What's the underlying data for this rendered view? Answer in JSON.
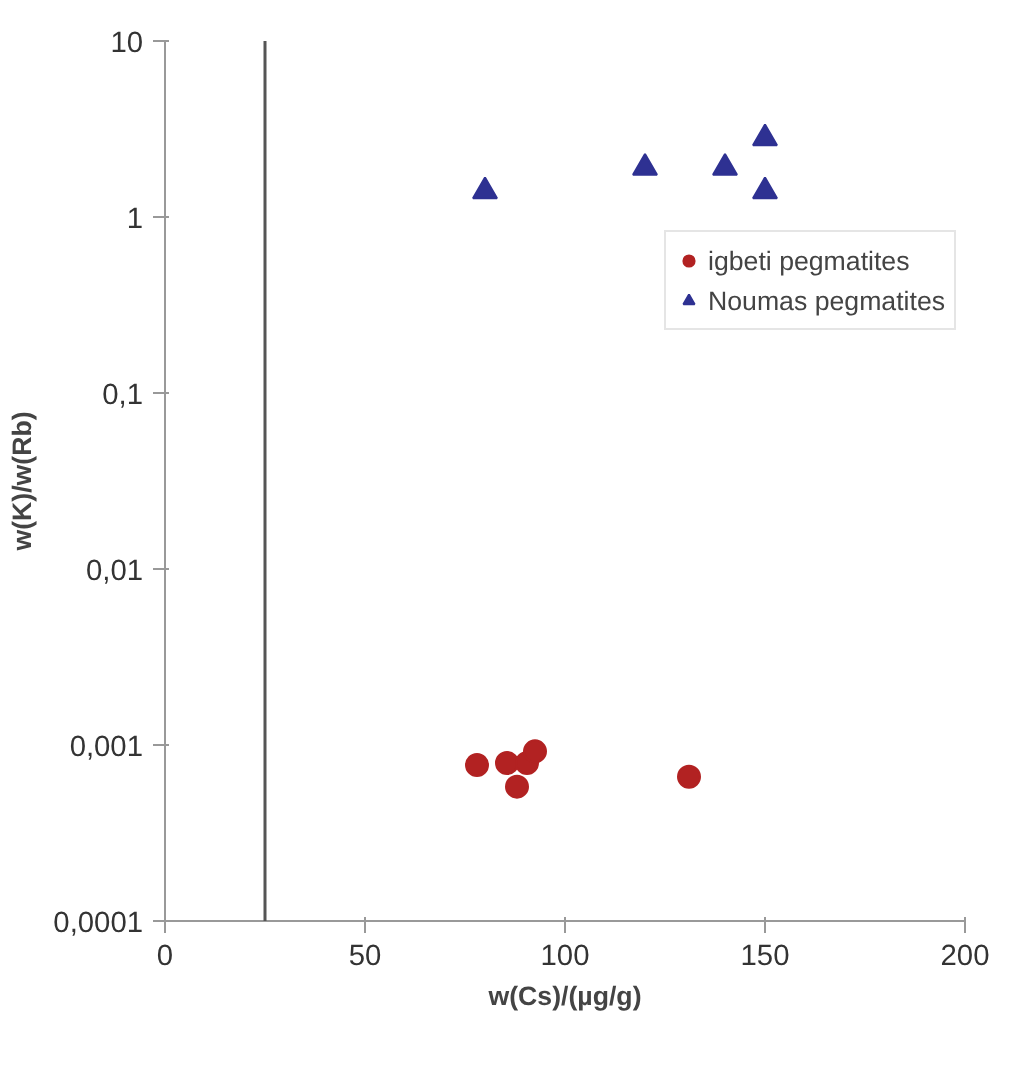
{
  "chart_data": {
    "type": "scatter",
    "xlabel": "w(Cs)/(µg/g)",
    "ylabel": "w(K)/w(Rb)",
    "log": "y",
    "xlim": [
      0,
      200
    ],
    "xticks": [
      0,
      50,
      100,
      150,
      200
    ],
    "ylim": [
      0.0001,
      10
    ],
    "yticks": [
      {
        "value": 0.0001,
        "label": "0,0001"
      },
      {
        "value": 0.001,
        "label": "0,001"
      },
      {
        "value": 0.01,
        "label": "0,01"
      },
      {
        "value": 0.1,
        "label": "0,1"
      },
      {
        "value": 1,
        "label": "1"
      },
      {
        "value": 10,
        "label": "10"
      }
    ],
    "grid": false,
    "legend": "top right",
    "ref_lines": [
      {
        "axis": "x",
        "value": 25,
        "color": "#555555"
      }
    ],
    "series": [
      {
        "name": "igbeti pegmatites",
        "color": "#b22222",
        "marker": "circle",
        "x": [
          78,
          85.5,
          90.5,
          92.5,
          88,
          131
        ],
        "values": [
          0.00077,
          0.00079,
          0.00079,
          0.00092,
          0.00058,
          0.00066
        ]
      },
      {
        "name": "Noumas pegmatites",
        "color": "#2e3192",
        "marker": "triangle",
        "x": [
          80,
          120,
          140,
          150,
          150
        ],
        "values": [
          1.4,
          1.9,
          1.9,
          2.8,
          1.4
        ]
      }
    ]
  }
}
